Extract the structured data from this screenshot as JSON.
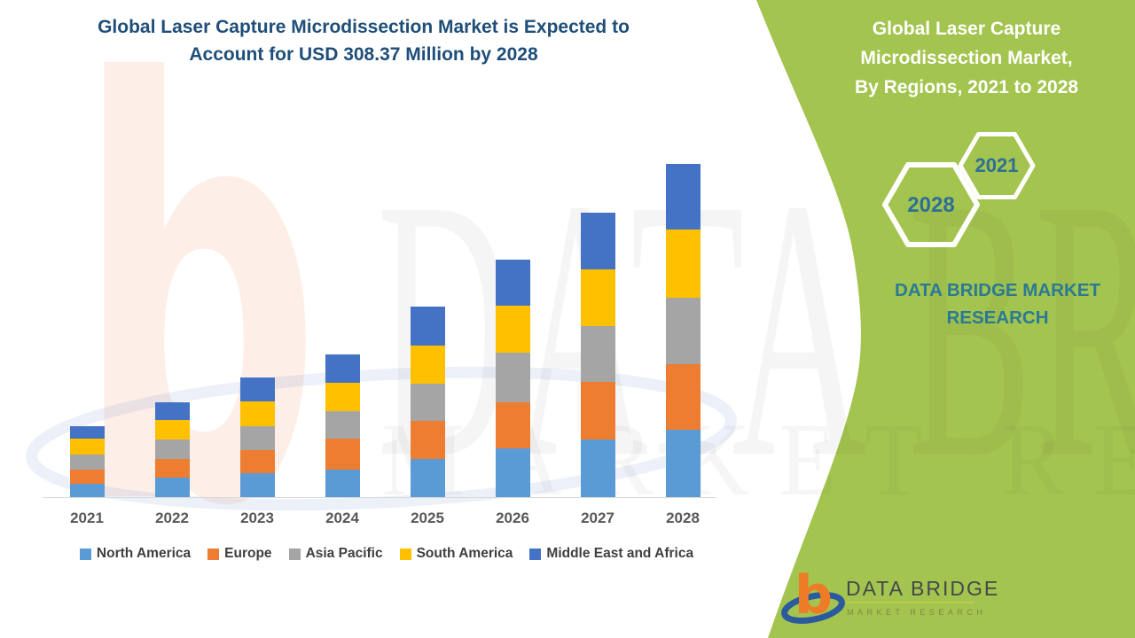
{
  "chart": {
    "title_line1": "Global Laser Capture Microdissection Market is Expected to",
    "title_line2": "Account for USD 308.37 Million by 2028",
    "title_color": "#1f4e79",
    "axis_label_color": "#595959",
    "legend_text_color": "#3f3f3f"
  },
  "chart_data": {
    "type": "bar",
    "stacked": true,
    "title": "Global Laser Capture Microdissection Market is Expected to Account for USD 308.37 Million by 2028",
    "unit": "USD Million",
    "total_2028": 308.37,
    "categories": [
      "2021",
      "2022",
      "2023",
      "2024",
      "2025",
      "2026",
      "2027",
      "2028"
    ],
    "series": [
      {
        "name": "North America",
        "color": "#5b9bd5",
        "values": [
          12.1,
          17.8,
          21.9,
          25.4,
          35.3,
          45.1,
          53.3,
          62.2
        ]
      },
      {
        "name": "Europe",
        "color": "#ed7d31",
        "values": [
          13.1,
          17.5,
          21.6,
          28.7,
          35.3,
          42.6,
          53.3,
          60.8
        ]
      },
      {
        "name": "Asia Pacific",
        "color": "#a5a5a5",
        "values": [
          14.4,
          18.0,
          22.1,
          25.4,
          34.4,
          45.9,
          51.7,
          61.5
        ]
      },
      {
        "name": "South America",
        "color": "#ffc000",
        "values": [
          14.3,
          18.3,
          23.0,
          26.2,
          35.3,
          43.2,
          52.7,
          63.1
        ]
      },
      {
        "name": "Middle East and Africa",
        "color": "#4472c4",
        "values": [
          11.7,
          15.9,
          21.6,
          26.2,
          36.1,
          42.6,
          52.0,
          60.8
        ]
      }
    ],
    "totals_by_year": [
      65.6,
      87.5,
      110.2,
      131.9,
      176.4,
      219.4,
      263.0,
      308.4
    ],
    "xlabel": "",
    "ylabel": "",
    "gridlines": false,
    "legend_position": "bottom"
  },
  "side_panel": {
    "bg_color": "#a3c44e",
    "title_lines": [
      "Global Laser Capture",
      "Microdissection Market,",
      "By Regions, 2021 to 2028"
    ],
    "hex_start_year": "2021",
    "hex_end_year": "2028",
    "hex_text_color": "#2d6f96",
    "brand_line1": "DATA BRIDGE MARKET",
    "brand_line2": "RESEARCH",
    "brand_text_color": "#2a7a94"
  },
  "logo": {
    "name": "DATA BRIDGE",
    "subtitle": "MARKET RESEARCH",
    "b_color": "#ee7c26",
    "swoosh_color": "#2b5b9e",
    "name_color": "#45474b",
    "subtitle_color": "#7a8a4a"
  },
  "watermark": {
    "big_text": "DATA BRIDGE",
    "sub_text": "MARKET RESEARCH",
    "b_glyph": "b"
  }
}
